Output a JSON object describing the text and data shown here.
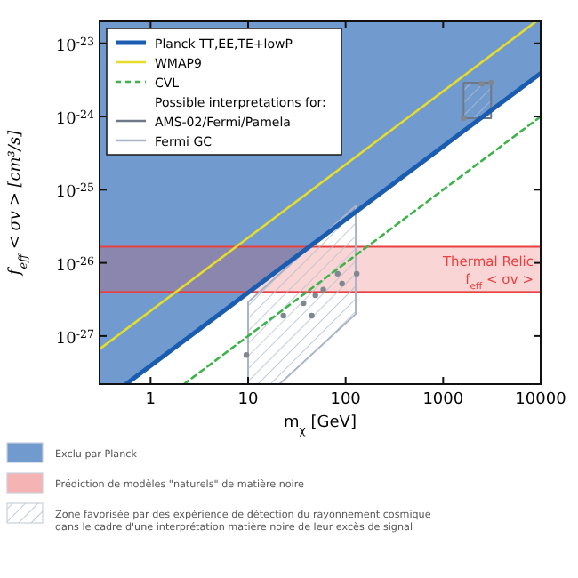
{
  "chart_data": {
    "type": "line",
    "xlabel": "m$_{χ}$ [GeV]",
    "ylabel": "f$_{eff}$ < σv > [cm³/s]",
    "log": "xy",
    "xlim": [
      0.3,
      10000
    ],
    "ylim": [
      2.2e-28,
      2e-23
    ],
    "xticks": [
      1,
      10,
      100,
      1000,
      10000
    ],
    "yticks": [
      {
        "value": 1e-27,
        "label": "10$^{-27}$"
      },
      {
        "value": 1e-26,
        "label": "10$^{-26}$"
      },
      {
        "value": 1e-25,
        "label": "10$^{-25}$"
      },
      {
        "value": 1e-24,
        "label": "10$^{-24}$"
      },
      {
        "value": 1e-23,
        "label": "10$^{-23}$"
      }
    ],
    "legend": "top left",
    "legend_title": "Possible interpretations for:",
    "series": [
      {
        "name": "Planck TT,EE,TE+lowP",
        "color": "#1a5cb0",
        "x": [
          0.3,
          0.56,
          10000
        ],
        "values": [
          null,
          2.2e-28,
          3.9e-24
        ],
        "lower": [
          2.2e-28,
          2.2e-28,
          3.9e-24
        ],
        "upper": [
          2e-23,
          2e-23,
          2e-23
        ]
      },
      {
        "name": "WMAP9",
        "color": "#e6dc2a",
        "x": [
          0.3,
          9000
        ],
        "values": [
          6.6e-28,
          2e-23
        ]
      },
      {
        "name": "CVL",
        "color": "#3cb44b",
        "line_style": "dashed",
        "x": [
          2.2,
          10000
        ],
        "values": [
          2.2e-28,
          1e-24
        ]
      },
      {
        "name": "AMS-02/Fermi/Pamela",
        "type": "area",
        "color": "#6e7887",
        "x": [
          1620,
          3100
        ],
        "values": [
          null,
          null
        ],
        "lower": [
          9.5e-25,
          9.5e-25
        ],
        "upper": [
          2.9e-24,
          2.9e-24
        ]
      },
      {
        "name": "Fermi GC",
        "type": "area",
        "color": "#a8b4c8",
        "x": [
          10,
          21,
          127
        ],
        "values": [
          null,
          null,
          null
        ],
        "lower": [
          2.2e-28,
          2.2e-28,
          2e-27
        ],
        "upper": [
          2.9e-27,
          7e-27,
          6e-26
        ]
      },
      {
        "type": "scatter",
        "color": "#7f8790",
        "marker": "circle",
        "x": [
          1620,
          2500,
          3100,
          9.6,
          23,
          37,
          45,
          49,
          59,
          83,
          92,
          130
        ],
        "values": [
          9.5e-25,
          2.8e-24,
          2.9e-24,
          5.5e-28,
          1.9e-27,
          2.8e-27,
          1.9e-27,
          3.6e-27,
          4.3e-27,
          7.1e-27,
          5.2e-27,
          7.1e-27
        ]
      }
    ],
    "bands": [
      {
        "axis": "y",
        "from": 4e-27,
        "to": 1.66e-26,
        "label": "Thermal Relic\nf$_{eff}$ < σv >",
        "color": "#e84040"
      }
    ],
    "annotations": [
      "Exclu par Planck",
      "Prédiction de modèles \"naturels\" de matière noire",
      "Zone favorisée par des expérience de détection du rayonnement cosmique\ndans le cadre d'une interprétation matière noire de leur excès de signal"
    ]
  }
}
